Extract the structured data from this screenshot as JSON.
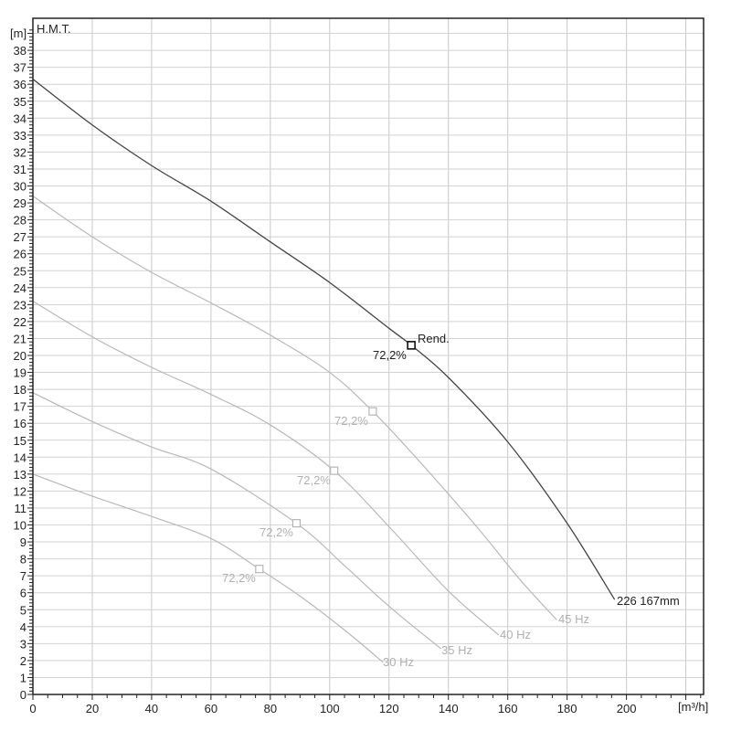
{
  "chart_data": {
    "type": "line",
    "title": "H.M.T.",
    "xlabel": "[m³/h]",
    "ylabel": "[m]",
    "xlim": [
      0,
      226
    ],
    "ylim": [
      0,
      39
    ],
    "grid": true,
    "x_ticks": [
      0,
      20,
      40,
      60,
      80,
      100,
      120,
      140,
      160,
      180,
      200
    ],
    "y_ticks": [
      0,
      1,
      2,
      3,
      4,
      5,
      6,
      7,
      8,
      9,
      10,
      11,
      12,
      13,
      14,
      15,
      16,
      17,
      18,
      19,
      20,
      21,
      22,
      23,
      24,
      25,
      26,
      27,
      28,
      29,
      30,
      31,
      32,
      33,
      34,
      35,
      36,
      37,
      38
    ],
    "series": [
      {
        "name": "226 167mm",
        "label": "226 167mm",
        "color": "#444444",
        "x": [
          0,
          20,
          40,
          60,
          80,
          100,
          120,
          127.5,
          140,
          160,
          180,
          196
        ],
        "y": [
          36.3,
          33.6,
          31.2,
          29.1,
          26.7,
          24.3,
          21.6,
          20.6,
          18.7,
          14.9,
          10.1,
          5.6
        ],
        "marker": {
          "x": 127.5,
          "y": 20.6,
          "label": "72,2%",
          "tag": "Rend."
        }
      },
      {
        "name": "45 Hz",
        "label": "45 Hz",
        "color": "#b8b8b8",
        "x": [
          0,
          20,
          40,
          60,
          80,
          100,
          114.5,
          130,
          150,
          164,
          176.5
        ],
        "y": [
          29.4,
          27.0,
          24.9,
          23.1,
          21.2,
          19.0,
          16.7,
          13.8,
          9.8,
          6.8,
          4.4
        ],
        "marker": {
          "x": 114.5,
          "y": 16.7,
          "label": "72,2%"
        }
      },
      {
        "name": "40 Hz",
        "label": "40 Hz",
        "color": "#b8b8b8",
        "x": [
          0,
          20,
          40,
          60,
          80,
          101.5,
          120,
          140,
          157
        ],
        "y": [
          23.2,
          21.1,
          19.3,
          17.7,
          15.9,
          13.2,
          9.9,
          6.1,
          3.5
        ],
        "marker": {
          "x": 101.5,
          "y": 13.2,
          "label": "72,2%"
        }
      },
      {
        "name": "35 Hz",
        "label": "35 Hz",
        "color": "#b8b8b8",
        "x": [
          0,
          20,
          40,
          60,
          88.8,
          105,
          120,
          137.5
        ],
        "y": [
          17.8,
          16.1,
          14.6,
          13.3,
          10.1,
          7.6,
          5.2,
          2.7
        ],
        "marker": {
          "x": 88.8,
          "y": 10.1,
          "label": "72,2%"
        }
      },
      {
        "name": "30 Hz",
        "label": "30 Hz",
        "color": "#b8b8b8",
        "x": [
          0,
          20,
          40,
          60,
          76.3,
          90,
          105,
          118
        ],
        "y": [
          13.0,
          11.7,
          10.5,
          9.2,
          7.4,
          5.8,
          3.8,
          1.9
        ],
        "marker": {
          "x": 76.3,
          "y": 7.4,
          "label": "72,2%"
        }
      }
    ]
  },
  "axes": {
    "y_unit": "[m]",
    "y_title": "H.M.T.",
    "x_unit": "[m³/h]"
  },
  "labels": {
    "rend": "Rend.",
    "main_eff": "72,2%",
    "main_curve": "226 167mm",
    "eff_45": "72,2%",
    "eff_40": "72,2%",
    "eff_35": "72,2%",
    "eff_30": "72,2%",
    "hz_45": "45 Hz",
    "hz_40": "40 Hz",
    "hz_35": "35 Hz",
    "hz_30": "30 Hz"
  }
}
